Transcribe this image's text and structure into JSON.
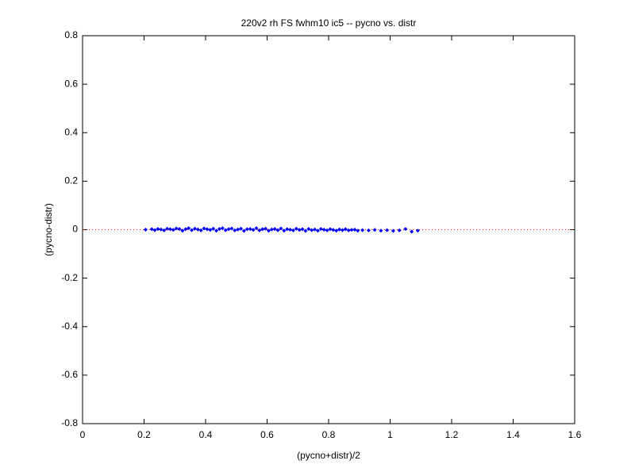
{
  "chart_data": {
    "type": "scatter",
    "title": "220v2 rh FS fwhm10 ic5 -- pycno vs. distr",
    "x_label": "(pycno+distr)/2",
    "y_label": "(pycno-distr)",
    "color": "#0000ff",
    "reference_line": {
      "y": 0,
      "color": "#ff0000"
    },
    "xlim": [
      0,
      1.6
    ],
    "ylim": [
      -0.8,
      0.8
    ],
    "xticks": [
      0,
      0.2,
      0.4,
      0.6,
      0.8,
      1,
      1.2,
      1.4,
      1.6
    ],
    "yticks": [
      -0.8,
      -0.6,
      -0.4,
      -0.2,
      0,
      0.2,
      0.4,
      0.6,
      0.8
    ],
    "x": [
      0.205,
      0.225,
      0.235,
      0.245,
      0.255,
      0.265,
      0.275,
      0.285,
      0.295,
      0.305,
      0.315,
      0.325,
      0.335,
      0.345,
      0.355,
      0.365,
      0.375,
      0.385,
      0.395,
      0.405,
      0.415,
      0.425,
      0.435,
      0.445,
      0.455,
      0.465,
      0.475,
      0.485,
      0.495,
      0.505,
      0.515,
      0.525,
      0.535,
      0.545,
      0.555,
      0.565,
      0.575,
      0.585,
      0.595,
      0.605,
      0.615,
      0.625,
      0.635,
      0.645,
      0.655,
      0.665,
      0.675,
      0.685,
      0.695,
      0.705,
      0.715,
      0.725,
      0.735,
      0.745,
      0.755,
      0.765,
      0.775,
      0.785,
      0.795,
      0.805,
      0.815,
      0.825,
      0.835,
      0.845,
      0.855,
      0.865,
      0.875,
      0.885,
      0.895,
      0.91,
      0.93,
      0.95,
      0.97,
      0.99,
      1.01,
      1.03,
      1.05,
      1.07,
      1.09
    ],
    "values": [
      0,
      0.002,
      -0.002,
      0.003,
      0.001,
      -0.003,
      0.004,
      0.002,
      -0.001,
      0.005,
      0.003,
      -0.004,
      0.002,
      0.006,
      -0.002,
      0.004,
      0.001,
      -0.003,
      0.005,
      0.002,
      -0.001,
      0.004,
      -0.004,
      0.003,
      0.006,
      -0.002,
      0.002,
      0.005,
      -0.003,
      0.001,
      0.004,
      -0.005,
      0.002,
      0.003,
      -0.001,
      0.006,
      -0.003,
      0.002,
      0.004,
      -0.004,
      0.001,
      0.003,
      -0.002,
      0.005,
      -0.004,
      0.002,
      0,
      -0.003,
      0.004,
      -0.001,
      0.002,
      -0.005,
      0.003,
      -0.002,
      0.001,
      -0.004,
      0.003,
      0,
      -0.003,
      0.002,
      -0.001,
      -0.004,
      0.001,
      -0.002,
      0.002,
      -0.003,
      -0.001,
      0,
      -0.004,
      -0.002,
      -0.003,
      -0.001,
      -0.004,
      -0.002,
      -0.005,
      -0.003,
      0.003,
      -0.008,
      -0.004
    ]
  }
}
